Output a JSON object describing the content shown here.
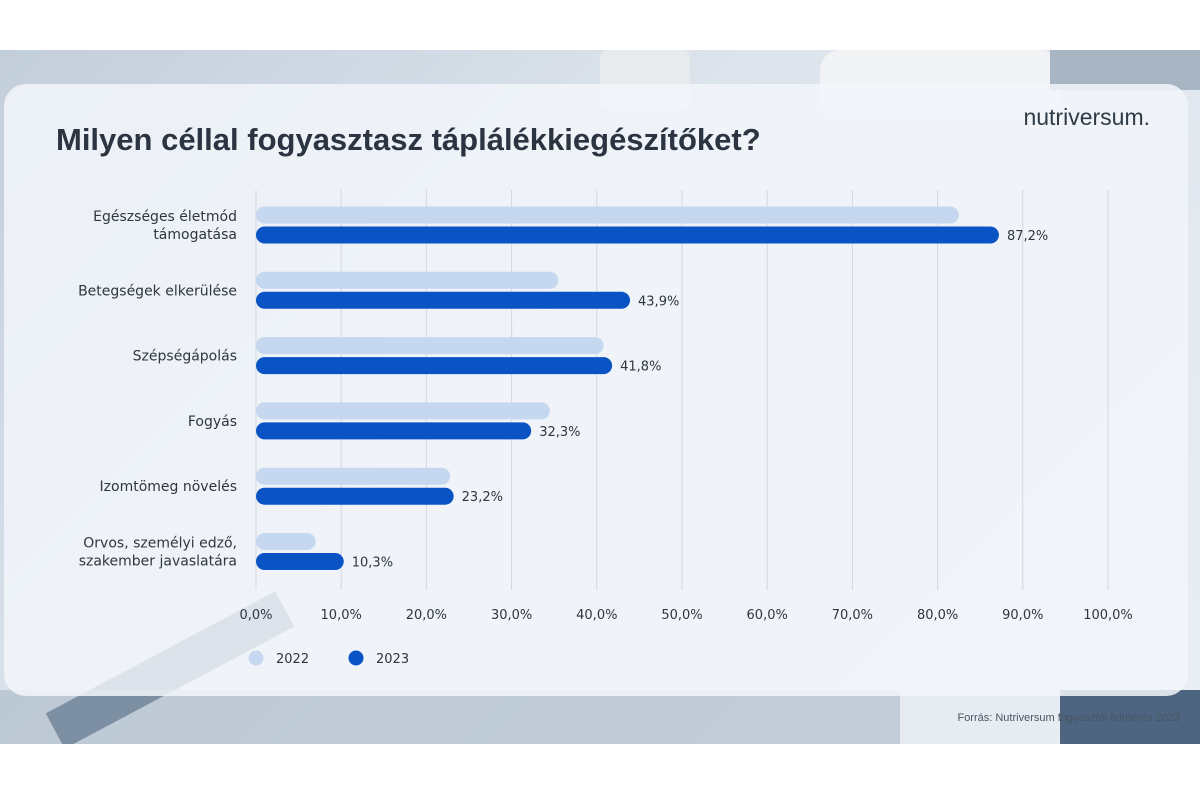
{
  "title": "Milyen céllal fogyasztasz táplálékkiegészítőket?",
  "brand": "nutriversum.",
  "source": "Forrás: Nutriversum fogyasztói felmérés 2023",
  "colors": {
    "series_2022": "#c5d8ef",
    "series_2023": "#0a53c4",
    "grid": "#d2d8df",
    "text": "#2e3640"
  },
  "chart_data": {
    "type": "bar",
    "orientation": "horizontal",
    "categories": [
      [
        "Egészséges életmód",
        "támogatása"
      ],
      [
        "Betegségek elkerülése"
      ],
      [
        "Szépségápolás"
      ],
      [
        "Fogyás"
      ],
      [
        "Izomtömeg növelés"
      ],
      [
        "Orvos, személyi edző,",
        "szakember javaslatára"
      ]
    ],
    "series": [
      {
        "name": "2022",
        "values": [
          82.5,
          35.5,
          40.8,
          34.5,
          22.8,
          7.0
        ],
        "labels": [
          "",
          "",
          "",
          "",
          "",
          ""
        ]
      },
      {
        "name": "2023",
        "values": [
          87.2,
          43.9,
          41.8,
          32.3,
          23.2,
          10.3
        ],
        "labels": [
          "87,2%",
          "43,9%",
          "41,8%",
          "32,3%",
          "23,2%",
          "10,3%"
        ]
      }
    ],
    "xlim": [
      0,
      100
    ],
    "ticks": [
      "0,0%",
      "10,0%",
      "20,0%",
      "30,0%",
      "40,0%",
      "50,0%",
      "60,0%",
      "70,0%",
      "80,0%",
      "90,0%",
      "100,0%"
    ],
    "grid": true,
    "legend_position": "bottom-left"
  }
}
